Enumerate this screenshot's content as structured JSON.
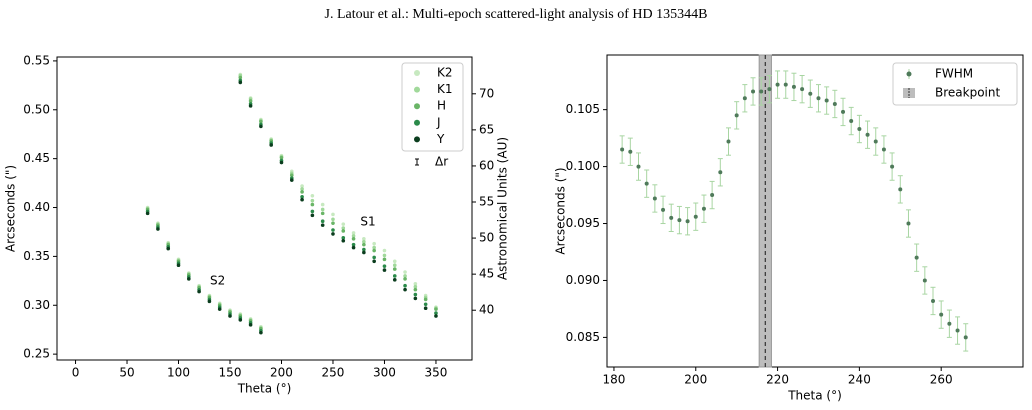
{
  "header": {
    "title": "J. Latour et al.: Multi-epoch scattered-light analysis of HD 135344B"
  },
  "chart_data": [
    {
      "type": "scatter",
      "xlabel": "Theta (°)",
      "ylabel": "Arcseconds (\")",
      "y2label": "Astronomical Units (AU)",
      "xlim": [
        -18,
        385
      ],
      "xticks": [
        0,
        50,
        100,
        150,
        200,
        250,
        300,
        350
      ],
      "ylim": [
        0.244,
        0.554
      ],
      "yticks": [
        0.25,
        {
          "value": 0.3,
          "label": "0.30"
        },
        0.35,
        {
          "value": 0.4,
          "label": "0.40"
        },
        0.45,
        {
          "value": 0.5,
          "label": "0.50"
        },
        0.55
      ],
      "y2lim": [
        33.1,
        75.1
      ],
      "y2ticks": [
        40,
        45,
        50,
        55,
        60,
        65,
        70
      ],
      "legend_loc": "upper right",
      "error_label": "Δr",
      "annotations": [
        {
          "text": "S1",
          "x": 284,
          "y": 0.385
        },
        {
          "text": "S2",
          "x": 138,
          "y": 0.325
        }
      ],
      "x": [
        70,
        80,
        90,
        100,
        110,
        120,
        130,
        140,
        150,
        160,
        170,
        180,
        160,
        170,
        180,
        190,
        200,
        210,
        220,
        230,
        240,
        250,
        260,
        270,
        280,
        290,
        300,
        310,
        320,
        330,
        340,
        350
      ],
      "series": [
        {
          "name": "K2",
          "color": "#c7e9c0",
          "values": [
            0.4,
            0.384,
            0.364,
            0.347,
            0.333,
            0.32,
            0.31,
            0.302,
            0.295,
            0.291,
            0.286,
            0.278,
            0.536,
            0.512,
            0.49,
            0.47,
            0.453,
            0.437,
            0.422,
            0.412,
            0.403,
            0.393,
            0.383,
            0.374,
            0.368,
            0.363,
            0.356,
            0.345,
            0.334,
            0.322,
            0.31,
            0.298
          ]
        },
        {
          "name": "K1",
          "color": "#a1d99b",
          "values": [
            0.399,
            0.383,
            0.363,
            0.346,
            0.332,
            0.319,
            0.309,
            0.301,
            0.294,
            0.29,
            0.285,
            0.277,
            0.535,
            0.511,
            0.489,
            0.469,
            0.452,
            0.435,
            0.419,
            0.407,
            0.398,
            0.388,
            0.379,
            0.371,
            0.365,
            0.359,
            0.351,
            0.341,
            0.33,
            0.319,
            0.308,
            0.297
          ]
        },
        {
          "name": "H",
          "color": "#6ab567",
          "values": [
            0.398,
            0.382,
            0.362,
            0.345,
            0.331,
            0.318,
            0.308,
            0.3,
            0.293,
            0.289,
            0.284,
            0.276,
            0.533,
            0.509,
            0.488,
            0.468,
            0.451,
            0.433,
            0.416,
            0.403,
            0.394,
            0.384,
            0.376,
            0.368,
            0.362,
            0.356,
            0.347,
            0.337,
            0.327,
            0.316,
            0.306,
            0.296
          ]
        },
        {
          "name": "J",
          "color": "#2a8a4a",
          "values": [
            0.396,
            0.38,
            0.36,
            0.343,
            0.329,
            0.316,
            0.306,
            0.298,
            0.291,
            0.287,
            0.282,
            0.274,
            0.53,
            0.506,
            0.485,
            0.466,
            0.448,
            0.43,
            0.411,
            0.396,
            0.386,
            0.377,
            0.369,
            0.362,
            0.357,
            0.349,
            0.34,
            0.33,
            0.32,
            0.311,
            0.301,
            0.292
          ]
        },
        {
          "name": "Y",
          "color": "#0b3d1e",
          "values": [
            0.394,
            0.378,
            0.358,
            0.341,
            0.327,
            0.314,
            0.304,
            0.296,
            0.289,
            0.285,
            0.28,
            0.272,
            0.528,
            0.504,
            0.483,
            0.464,
            0.446,
            0.428,
            0.408,
            0.392,
            0.382,
            0.373,
            0.366,
            0.359,
            0.354,
            0.345,
            0.336,
            0.326,
            0.316,
            0.307,
            0.297,
            0.289
          ]
        }
      ]
    },
    {
      "type": "errorbar",
      "xlabel": "Theta (°)",
      "ylabel": "Arcseconds (\")",
      "xlim": [
        178.3,
        280
      ],
      "xticks": [
        180,
        200,
        220,
        240,
        260
      ],
      "ylim": [
        0.0824,
        0.1098
      ],
      "yticks": [
        0.085,
        {
          "value": 0.09,
          "label": "0.090"
        },
        0.095,
        {
          "value": 0.1,
          "label": "0.100"
        },
        0.105
      ],
      "legend_loc": "upper right",
      "breakpoint": {
        "name": "Breakpoint",
        "value": 217,
        "band": [
          215.5,
          218.5
        ]
      },
      "series": [
        {
          "name": "FWHM",
          "color": "#4f7a5a",
          "error_color": "#a8d5a2",
          "error": 0.0012,
          "x": [
            182,
            184,
            186,
            188,
            190,
            192,
            194,
            196,
            198,
            200,
            202,
            204,
            206,
            208,
            210,
            212,
            214,
            216,
            218,
            220,
            222,
            224,
            226,
            228,
            230,
            232,
            234,
            236,
            238,
            240,
            242,
            244,
            246,
            248,
            250,
            252,
            254,
            256,
            258,
            260,
            262,
            264,
            266
          ],
          "values": [
            0.1015,
            0.1013,
            0.1,
            0.0985,
            0.0972,
            0.0962,
            0.0955,
            0.0953,
            0.0952,
            0.0956,
            0.0963,
            0.0975,
            0.0995,
            0.1022,
            0.1045,
            0.106,
            0.1066,
            0.1066,
            0.1068,
            0.1072,
            0.1072,
            0.107,
            0.1068,
            0.1064,
            0.106,
            0.1058,
            0.1055,
            0.1048,
            0.104,
            0.1033,
            0.1028,
            0.1022,
            0.1015,
            0.1,
            0.098,
            0.095,
            0.092,
            0.09,
            0.0882,
            0.087,
            0.0862,
            0.0856,
            0.085
          ]
        }
      ]
    }
  ]
}
